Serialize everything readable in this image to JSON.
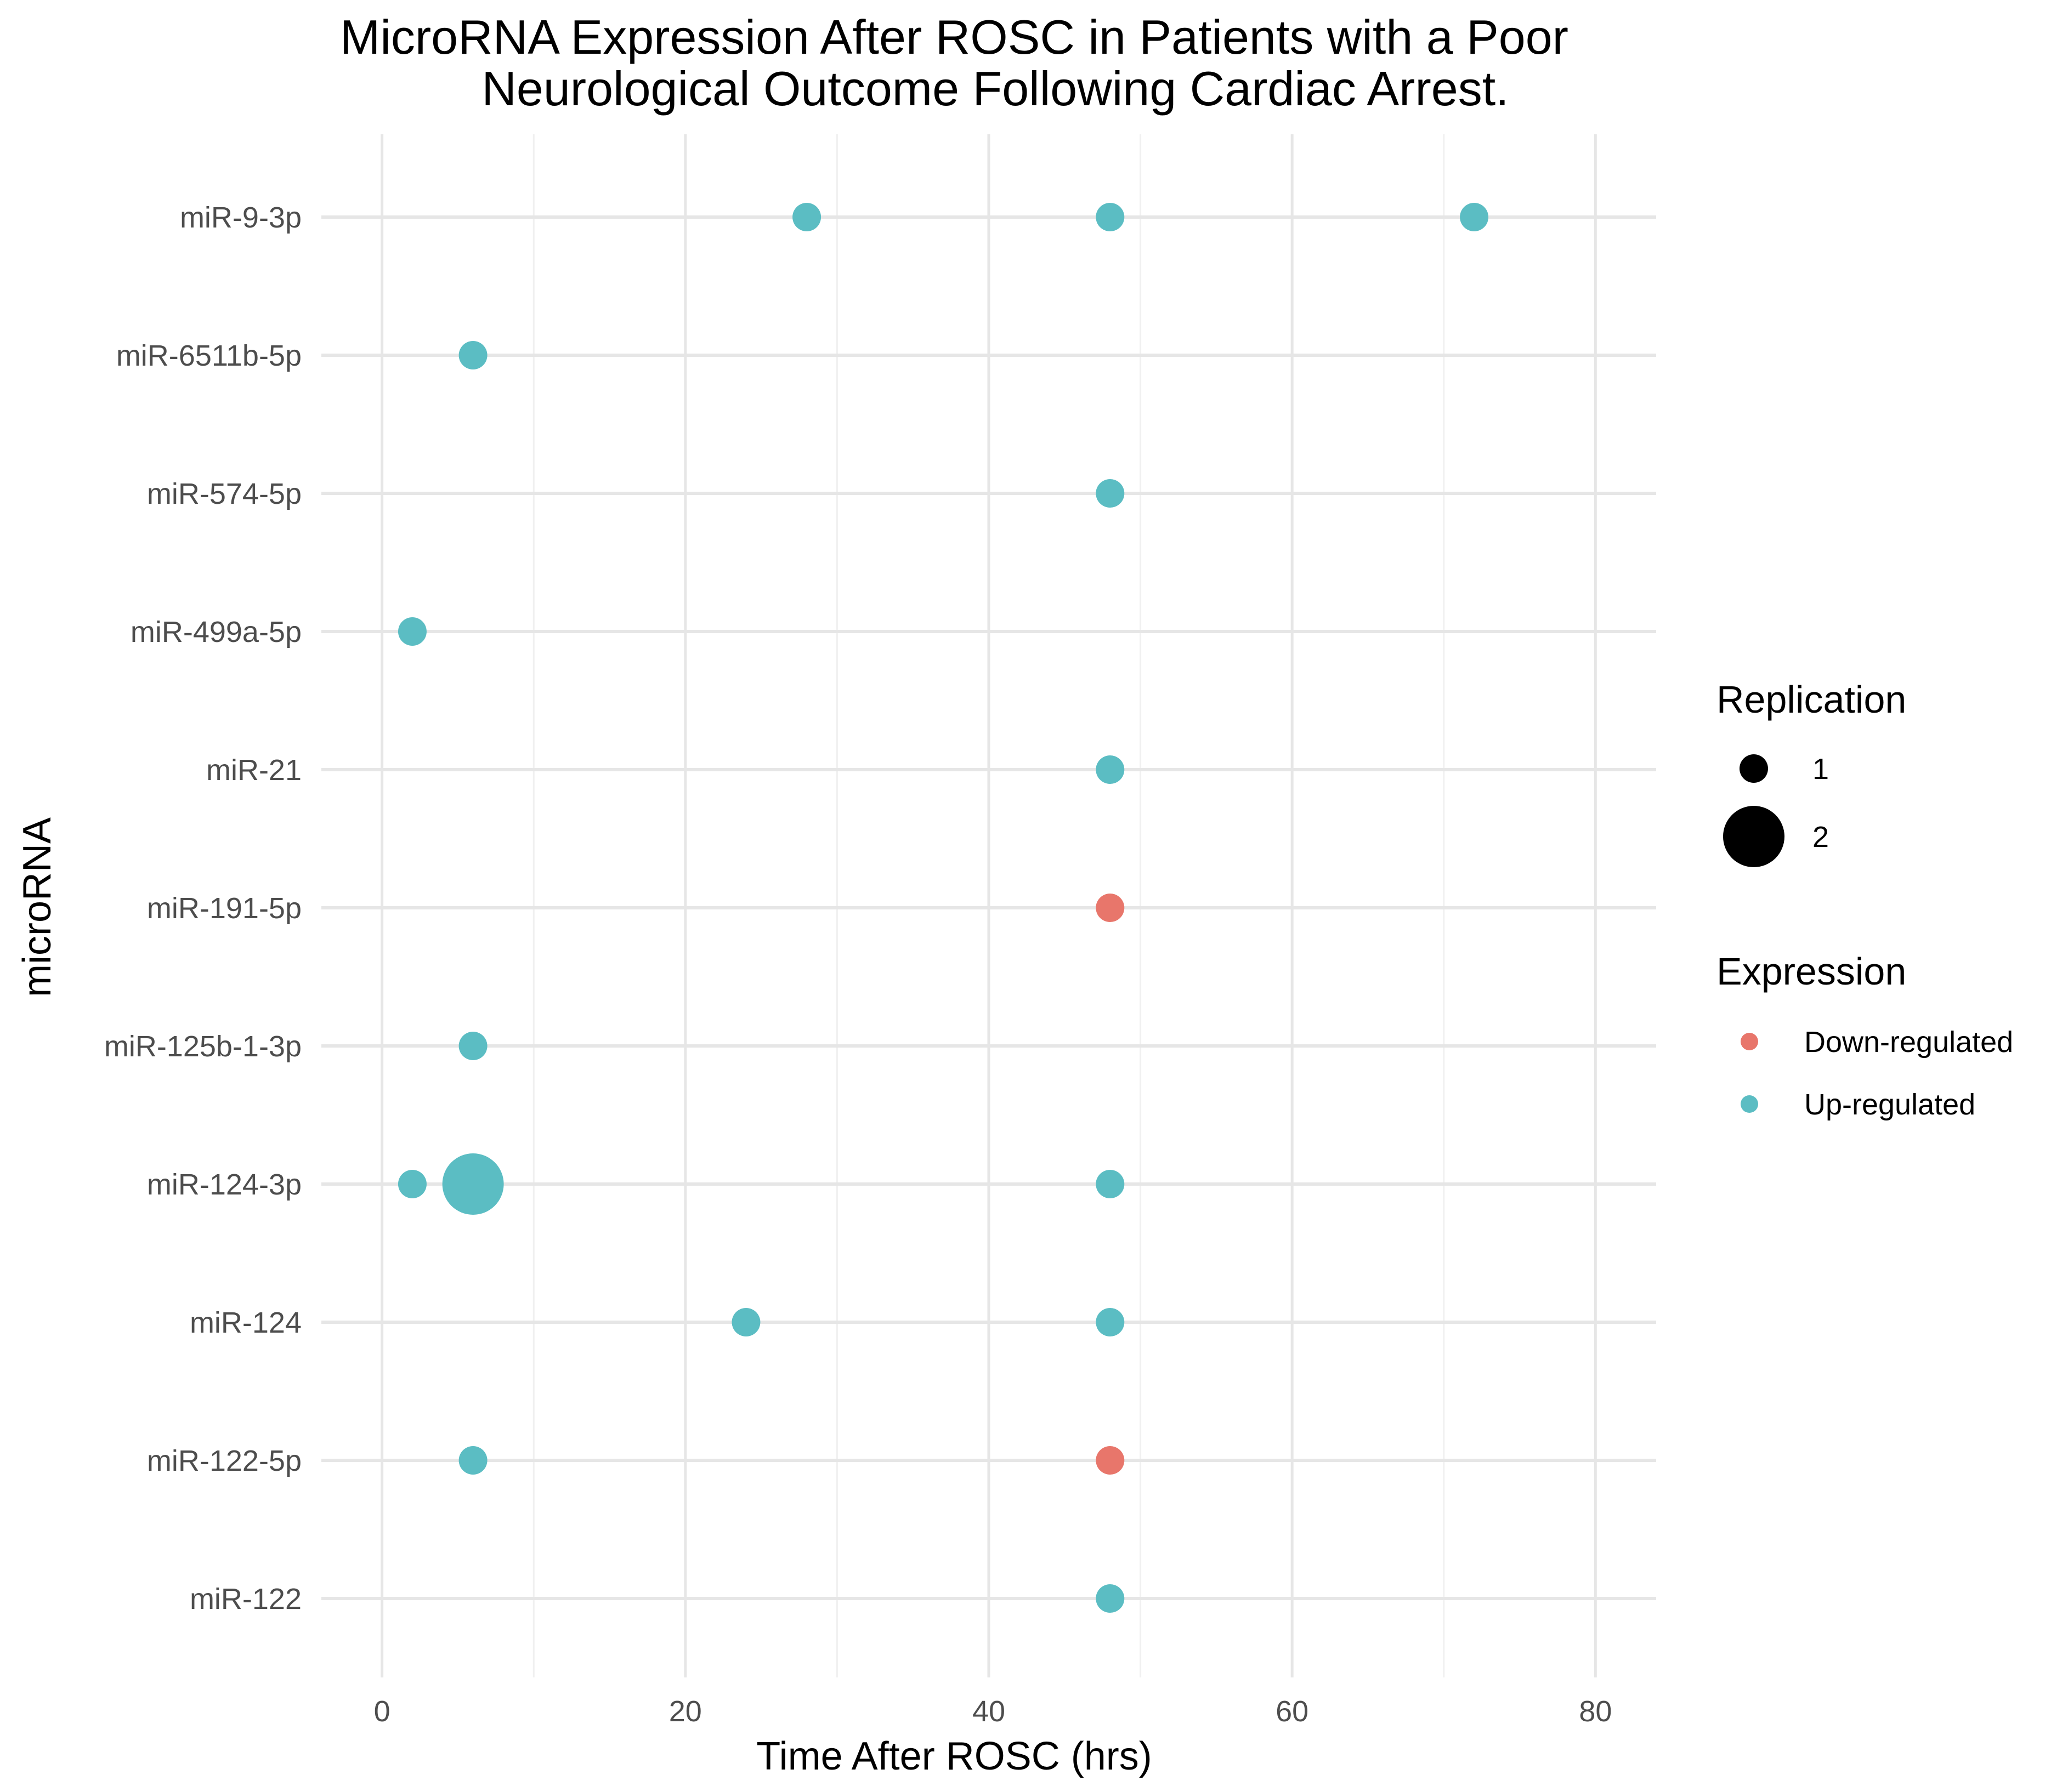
{
  "chart_data": {
    "type": "scatter",
    "title_lines": [
      "MicroRNA Expression After ROSC in Patients with a Poor",
      "Neurological Outcome Following Cardiac Arrest."
    ],
    "xlabel": "Time After ROSC (hrs)",
    "ylabel": "microRNA",
    "xlim": [
      -4,
      84
    ],
    "x_ticks": [
      0,
      20,
      40,
      60,
      80
    ],
    "x_minor_ticks": [
      10,
      30,
      50,
      70
    ],
    "grid": true,
    "categories": [
      "miR-9-3p",
      "miR-6511b-5p",
      "miR-574-5p",
      "miR-499a-5p",
      "miR-21",
      "miR-191-5p",
      "miR-125b-1-3p",
      "miR-124-3p",
      "miR-124",
      "miR-122-5p",
      "miR-122"
    ],
    "points": [
      {
        "mirna": "miR-9-3p",
        "time": 28,
        "replication": 1,
        "expression": "Up-regulated"
      },
      {
        "mirna": "miR-9-3p",
        "time": 48,
        "replication": 1,
        "expression": "Up-regulated"
      },
      {
        "mirna": "miR-9-3p",
        "time": 72,
        "replication": 1,
        "expression": "Up-regulated"
      },
      {
        "mirna": "miR-6511b-5p",
        "time": 6,
        "replication": 1,
        "expression": "Up-regulated"
      },
      {
        "mirna": "miR-574-5p",
        "time": 48,
        "replication": 1,
        "expression": "Up-regulated"
      },
      {
        "mirna": "miR-499a-5p",
        "time": 2,
        "replication": 1,
        "expression": "Up-regulated"
      },
      {
        "mirna": "miR-21",
        "time": 48,
        "replication": 1,
        "expression": "Up-regulated"
      },
      {
        "mirna": "miR-191-5p",
        "time": 48,
        "replication": 1,
        "expression": "Down-regulated"
      },
      {
        "mirna": "miR-125b-1-3p",
        "time": 6,
        "replication": 1,
        "expression": "Up-regulated"
      },
      {
        "mirna": "miR-124-3p",
        "time": 2,
        "replication": 1,
        "expression": "Up-regulated"
      },
      {
        "mirna": "miR-124-3p",
        "time": 6,
        "replication": 2,
        "expression": "Up-regulated"
      },
      {
        "mirna": "miR-124-3p",
        "time": 48,
        "replication": 1,
        "expression": "Up-regulated"
      },
      {
        "mirna": "miR-124",
        "time": 24,
        "replication": 1,
        "expression": "Up-regulated"
      },
      {
        "mirna": "miR-124",
        "time": 48,
        "replication": 1,
        "expression": "Up-regulated"
      },
      {
        "mirna": "miR-122-5p",
        "time": 6,
        "replication": 1,
        "expression": "Up-regulated"
      },
      {
        "mirna": "miR-122-5p",
        "time": 48,
        "replication": 1,
        "expression": "Down-regulated"
      },
      {
        "mirna": "miR-122",
        "time": 48,
        "replication": 1,
        "expression": "Up-regulated"
      }
    ],
    "legend": {
      "position": "right",
      "size_title": "Replication",
      "size_entries": [
        {
          "label": "1",
          "value": 1
        },
        {
          "label": "2",
          "value": 2
        }
      ],
      "color_title": "Expression",
      "color_entries": [
        {
          "label": "Down-regulated",
          "color": "#e8766b"
        },
        {
          "label": "Up-regulated",
          "color": "#5bbdc3"
        }
      ]
    }
  }
}
